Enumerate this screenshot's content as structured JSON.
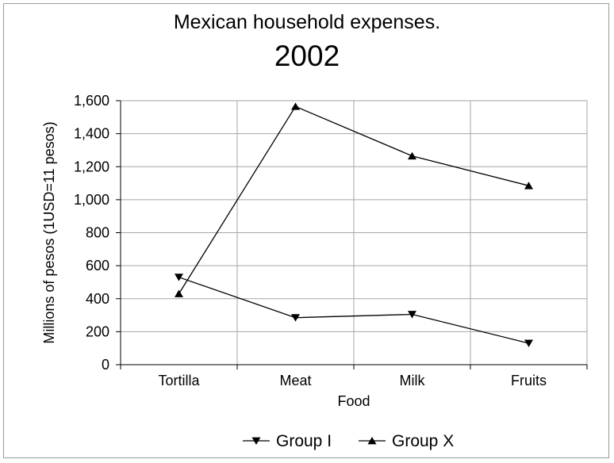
{
  "chart_data": {
    "type": "line",
    "title": "Mexican household expenses.",
    "subtitle": "2002",
    "xlabel": "Food",
    "ylabel": "Millions of pesos (1USD=11 pesos)",
    "categories": [
      "Tortilla",
      "Meat",
      "Milk",
      "Fruits"
    ],
    "ylim": [
      0,
      1600
    ],
    "yticks": [
      0,
      200,
      400,
      600,
      800,
      1000,
      1200,
      1400,
      1600
    ],
    "ytick_labels": [
      "0",
      "200",
      "400",
      "600",
      "800",
      "1,000",
      "1,200",
      "1,400",
      "1,600"
    ],
    "grid": true,
    "legend_position": "bottom",
    "series": [
      {
        "name": "Group I",
        "values": [
          530,
          285,
          305,
          130
        ],
        "marker": "triangle-down",
        "color": "#000000"
      },
      {
        "name": "Group X",
        "values": [
          430,
          1565,
          1265,
          1085
        ],
        "marker": "triangle-up",
        "color": "#000000"
      }
    ]
  }
}
